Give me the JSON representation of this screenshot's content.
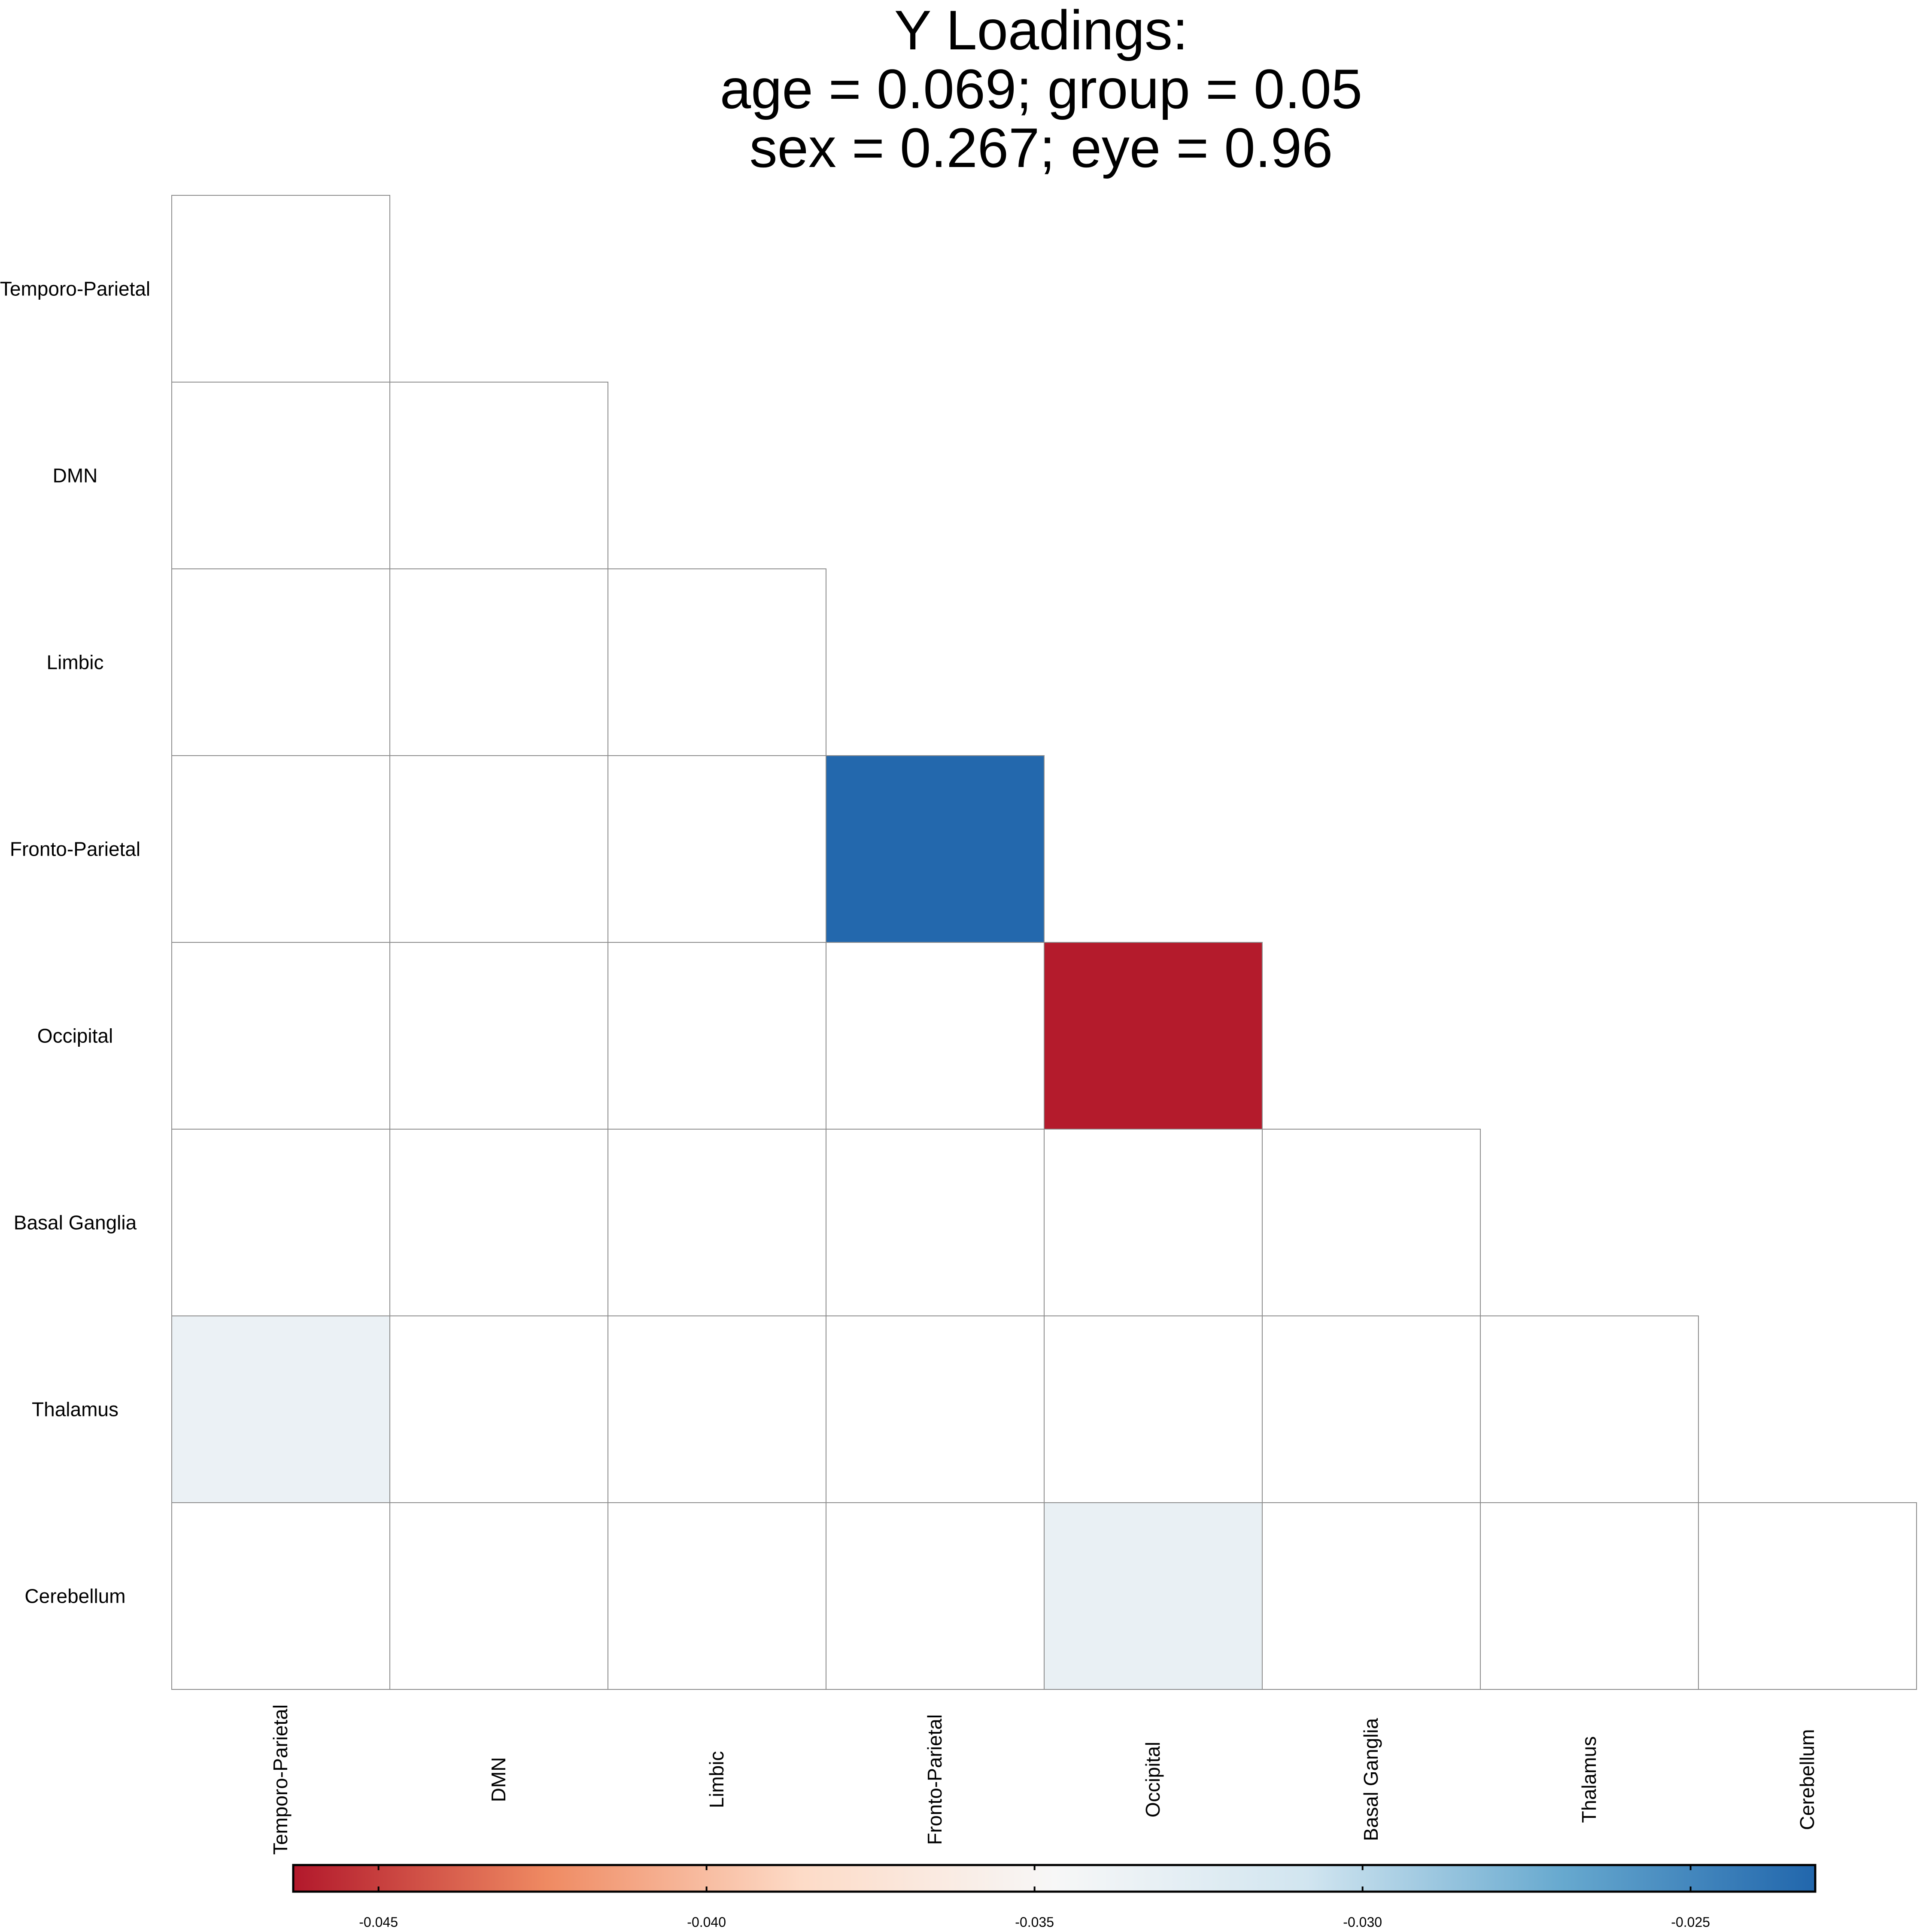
{
  "chart_data": {
    "type": "heatmap",
    "title_lines": [
      "Y Loadings:",
      "age = 0.069; group = 0.05",
      "sex = 0.267; eye = 0.96"
    ],
    "xlabel": "",
    "ylabel": "",
    "layout": "lower-triangle",
    "grid": true,
    "row_labels": [
      "Temporo-Parietal",
      "DMN",
      "Limbic",
      "Fronto-Parietal",
      "Occipital",
      "Basal Ganglia",
      "Thalamus",
      "Cerebellum"
    ],
    "col_labels": [
      "Temporo-Parietal",
      "DMN",
      "Limbic",
      "Fronto-Parietal",
      "Occipital",
      "Basal Ganglia",
      "Thalamus",
      "Cerebellum"
    ],
    "cells": [
      {
        "row": "Fronto-Parietal",
        "col": "Fronto-Parietal",
        "value": -0.0232
      },
      {
        "row": "Occipital",
        "col": "Occipital",
        "value": -0.0462
      },
      {
        "row": "Thalamus",
        "col": "Temporo-Parietal",
        "value": -0.0335
      },
      {
        "row": "Cerebellum",
        "col": "Occipital",
        "value": -0.0333
      }
    ],
    "colorbar": {
      "position": "bottom",
      "range": [
        -0.0463,
        -0.0231
      ],
      "ticks": [
        -0.045,
        -0.04,
        -0.035,
        -0.03,
        -0.025
      ],
      "tick_labels": [
        "-0.045",
        "-0.040",
        "-0.035",
        "-0.030",
        "-0.025"
      ],
      "colors": [
        "#b2182b",
        "#ef8a62",
        "#fddbc7",
        "#f7f7f7",
        "#d1e5f0",
        "#67a9cf",
        "#2166ac"
      ]
    }
  }
}
